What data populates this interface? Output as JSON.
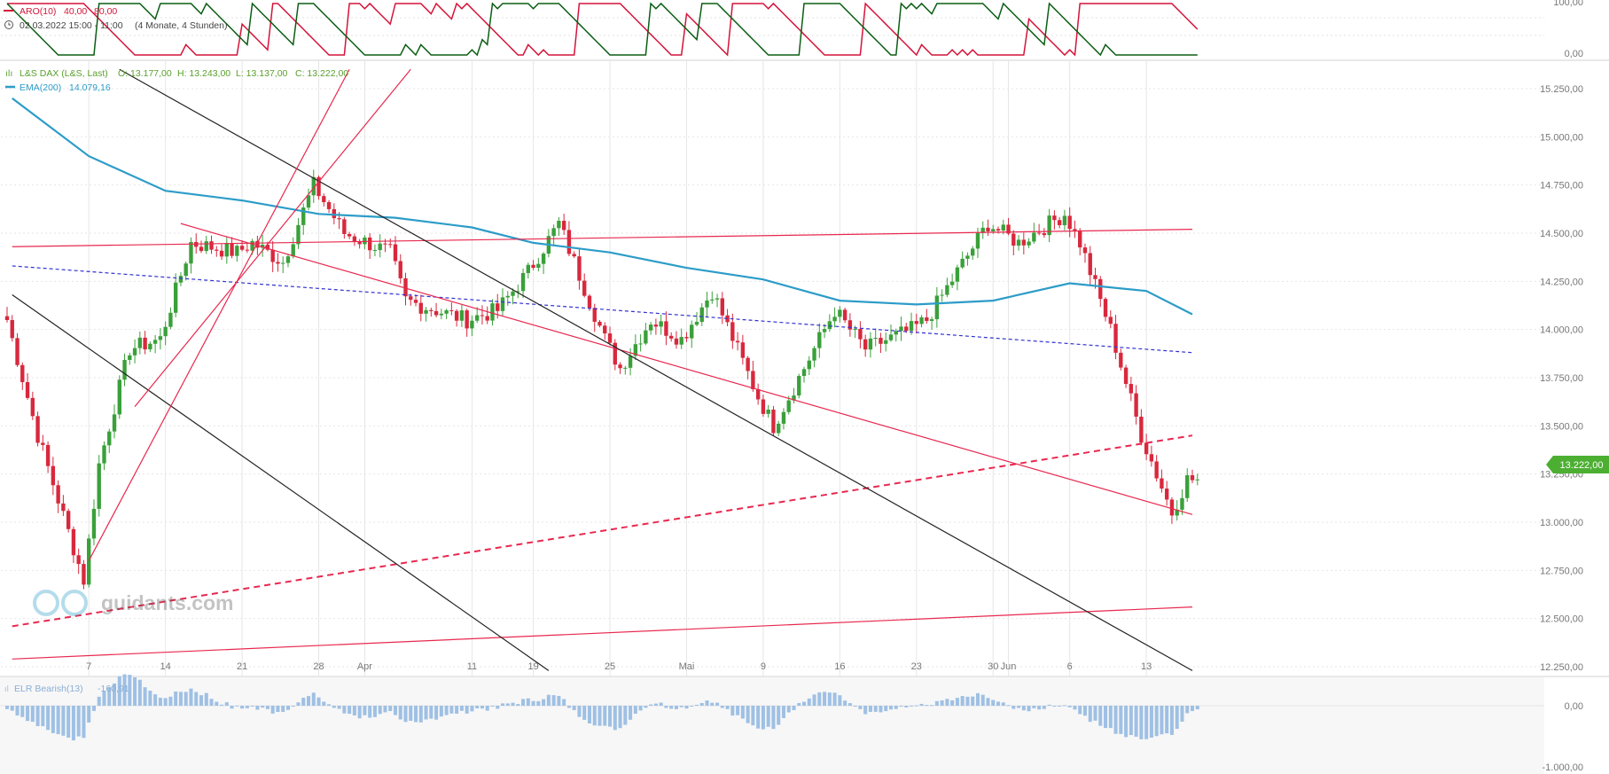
{
  "aroon_panel": {
    "name": "ARO(10)",
    "values": [
      "40,00",
      "80,00"
    ],
    "period_text": "02.03.2022 15:00 - 11:00",
    "range_note": "(4 Monate, 4 Stunden)",
    "y_ticks": [
      "100,00",
      "0,00"
    ],
    "up_color": "#d4143a",
    "down_color": "#0b5e14"
  },
  "price_panel": {
    "instrument": "L&S DAX (L&S, Last)",
    "ohlc": {
      "open": "O: 13.177,00",
      "high": "H: 13.243,00",
      "low": "L: 13.137,00",
      "close": "C: 13.222,00"
    },
    "ema_label": "EMA(200)",
    "ema_value": "14.079,16",
    "current_price_tag": "13.222,00",
    "watermark": "guidants.com"
  },
  "elr_panel": {
    "name": "ELR Bearish(13)",
    "value": "-160,91",
    "y_ticks": [
      "0,00",
      "-1.000,00"
    ],
    "color": "#9fc0e4"
  },
  "colors": {
    "bull": "#3aa03a",
    "bear": "#d8283d",
    "ema": "#2c9cc8",
    "trend_red": "#e8284f",
    "trend_black": "#222222",
    "trend_blue": "#3333d0",
    "price_tag": "#4caf32",
    "grid": "#e6e6e6"
  },
  "chart_data": {
    "type": "line",
    "title": "L&S DAX (L&S, Last)",
    "interval": "4 Stunden",
    "x_tick_labels": [
      "7",
      "14",
      "21",
      "28",
      "Apr",
      "11",
      "19",
      "25",
      "Mai",
      "9",
      "16",
      "23",
      "30",
      "Jun",
      "6",
      "13"
    ],
    "y_tick_labels": [
      "15.250,00",
      "15.000,00",
      "14.750,00",
      "14.500,00",
      "14.250,00",
      "14.000,00",
      "13.750,00",
      "13.500,00",
      "13.250,00",
      "13.000,00",
      "12.750,00",
      "12.500,00",
      "12.250,00"
    ],
    "ylim": [
      12200,
      15350
    ],
    "grid": true,
    "series": [
      {
        "name": "L&S DAX (L&S, Last)",
        "x": [
          "Mar 1",
          "Mar 3",
          "Mar 7",
          "Mar 9",
          "Mar 11",
          "Mar 15",
          "Mar 17",
          "Mar 21",
          "Mar 23",
          "Mar 25",
          "Mar 29",
          "Mar 31",
          "Apr 4",
          "Apr 6",
          "Apr 8",
          "Apr 12",
          "Apr 14",
          "Apr 19",
          "Apr 21",
          "Apr 25",
          "Apr 27",
          "Apr 29",
          "May 3",
          "May 5",
          "May 9",
          "May 11",
          "May 13",
          "May 17",
          "May 19",
          "May 23",
          "May 25",
          "May 27",
          "May 31",
          "Jun 2",
          "Jun 6",
          "Jun 8",
          "Jun 10",
          "Jun 14",
          "Jun 16",
          "Jun 17"
        ],
        "values": [
          14050,
          13450,
          12700,
          13300,
          13900,
          13950,
          14450,
          14400,
          14450,
          14350,
          14750,
          14500,
          14400,
          14150,
          14100,
          14050,
          14100,
          14300,
          14550,
          13950,
          13800,
          14050,
          13950,
          14200,
          13650,
          13500,
          13800,
          14100,
          13900,
          14000,
          14050,
          14300,
          14550,
          14450,
          14600,
          14450,
          14000,
          13450,
          13050,
          13222
        ]
      },
      {
        "name": "EMA(200)",
        "x": [
          "Mar 1",
          "Mar 7",
          "Mar 14",
          "Mar 21",
          "Mar 28",
          "Apr 4",
          "Apr 11",
          "Apr 19",
          "Apr 25",
          "May 2",
          "May 9",
          "May 16",
          "May 23",
          "May 30",
          "Jun 6",
          "Jun 13",
          "Jun 17"
        ],
        "values": [
          15200,
          14900,
          14720,
          14670,
          14600,
          14580,
          14530,
          14450,
          14400,
          14320,
          14260,
          14150,
          14130,
          14150,
          14240,
          14200,
          14079
        ]
      }
    ],
    "indicators": [
      {
        "name": "ARO(10)",
        "values": [
          40,
          80
        ],
        "ylim": [
          0,
          100
        ]
      },
      {
        "name": "ELR Bearish(13)",
        "value": -160.91,
        "ylim": [
          -1000,
          200
        ]
      }
    ]
  }
}
